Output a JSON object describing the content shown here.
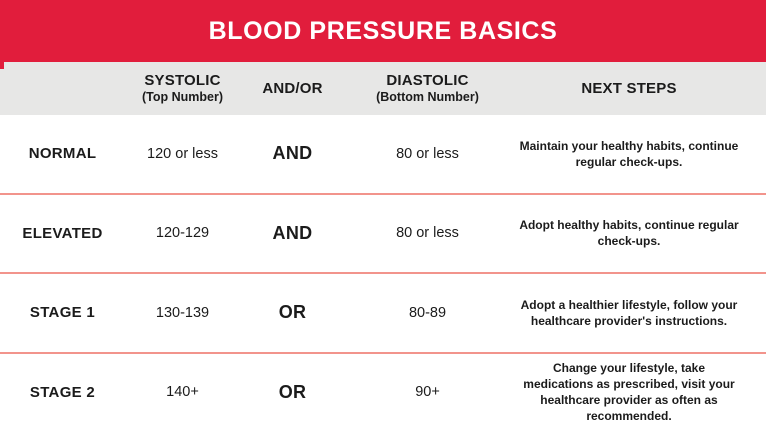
{
  "banner": {
    "title": "BLOOD PRESSURE BASICS"
  },
  "colors": {
    "banner_red": "#e11d3c",
    "header_gray": "#e7e7e6",
    "separator_salmon": "#f2948c",
    "text_dark": "#1b1b1b",
    "title_white": "#ffffff"
  },
  "table": {
    "columns": [
      {
        "label": "SYSTOLIC",
        "sublabel": "(Top Number)"
      },
      {
        "label": "AND/OR",
        "sublabel": ""
      },
      {
        "label": "DIASTOLIC",
        "sublabel": "(Bottom Number)"
      },
      {
        "label": "NEXT STEPS",
        "sublabel": ""
      }
    ],
    "rows": [
      {
        "category": "NORMAL",
        "systolic": "120 or less",
        "connector": "AND",
        "diastolic": "80 or less",
        "next_steps": "Maintain your healthy habits, continue regular check-ups."
      },
      {
        "category": "ELEVATED",
        "systolic": "120-129",
        "connector": "AND",
        "diastolic": "80 or less",
        "next_steps": "Adopt healthy habits, continue regular check-ups."
      },
      {
        "category": "STAGE 1",
        "systolic": "130-139",
        "connector": "OR",
        "diastolic": "80-89",
        "next_steps": "Adopt a healthier lifestyle, follow your healthcare provider's instructions."
      },
      {
        "category": "STAGE 2",
        "systolic": "140+",
        "connector": "OR",
        "diastolic": "90+",
        "next_steps": "Change your lifestyle, take medications as prescribed, visit your healthcare provider as often as recommended."
      }
    ]
  }
}
